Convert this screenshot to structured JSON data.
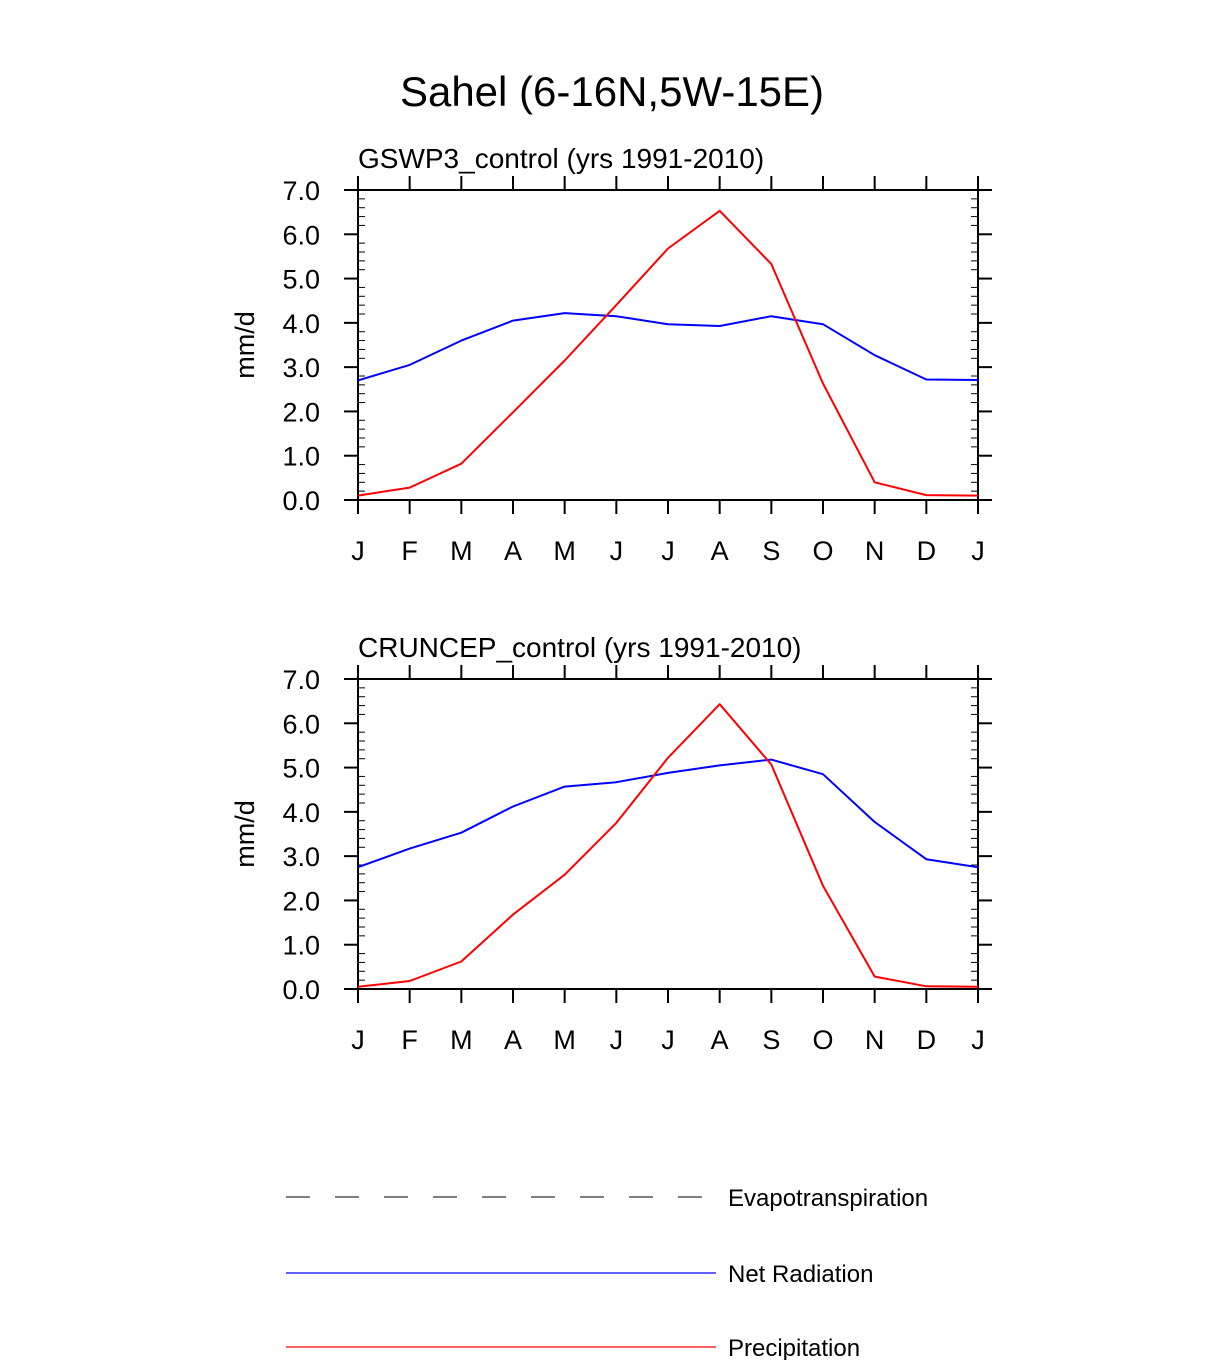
{
  "figure_title": "Sahel (6-16N,5W-15E)",
  "chart_data": [
    {
      "type": "line",
      "title": "GSWP3_control (yrs 1991-2010)",
      "xlabel": "",
      "ylabel": "mm/d",
      "ylim": [
        0,
        7
      ],
      "yticks": [
        "0.0",
        "1.0",
        "2.0",
        "3.0",
        "4.0",
        "5.0",
        "6.0",
        "7.0"
      ],
      "categories": [
        "J",
        "F",
        "M",
        "A",
        "M",
        "J",
        "J",
        "A",
        "S",
        "O",
        "N",
        "D",
        "J"
      ],
      "series": [
        {
          "name": "Net Radiation",
          "color": "#0000ff",
          "values": [
            2.7,
            3.05,
            3.6,
            4.05,
            4.22,
            4.15,
            3.97,
            3.93,
            4.15,
            3.97,
            3.27,
            2.72,
            2.71
          ]
        },
        {
          "name": "Precipitation",
          "color": "#ff0000",
          "values": [
            0.1,
            0.28,
            0.82,
            1.98,
            3.15,
            4.4,
            5.68,
            6.53,
            5.33,
            2.63,
            0.4,
            0.11,
            0.1
          ]
        }
      ]
    },
    {
      "type": "line",
      "title": "CRUNCEP_control (yrs 1991-2010)",
      "xlabel": "",
      "ylabel": "mm/d",
      "ylim": [
        0,
        7
      ],
      "yticks": [
        "0.0",
        "1.0",
        "2.0",
        "3.0",
        "4.0",
        "5.0",
        "6.0",
        "7.0"
      ],
      "categories": [
        "J",
        "F",
        "M",
        "A",
        "M",
        "J",
        "J",
        "A",
        "S",
        "O",
        "N",
        "D",
        "J"
      ],
      "series": [
        {
          "name": "Net Radiation",
          "color": "#0000ff",
          "values": [
            2.75,
            3.17,
            3.53,
            4.12,
            4.57,
            4.67,
            4.88,
            5.05,
            5.18,
            4.85,
            3.77,
            2.93,
            2.75
          ]
        },
        {
          "name": "Precipitation",
          "color": "#ff0000",
          "values": [
            0.05,
            0.18,
            0.62,
            1.68,
            2.58,
            3.75,
            5.22,
            6.43,
            5.07,
            2.33,
            0.28,
            0.06,
            0.05
          ]
        }
      ]
    }
  ],
  "legend": [
    {
      "label": "Evapotranspiration",
      "color": "#000000",
      "style": "dashed"
    },
    {
      "label": "Net Radiation",
      "color": "#0000ff",
      "style": "solid"
    },
    {
      "label": "Precipitation",
      "color": "#ff0000",
      "style": "solid"
    }
  ]
}
